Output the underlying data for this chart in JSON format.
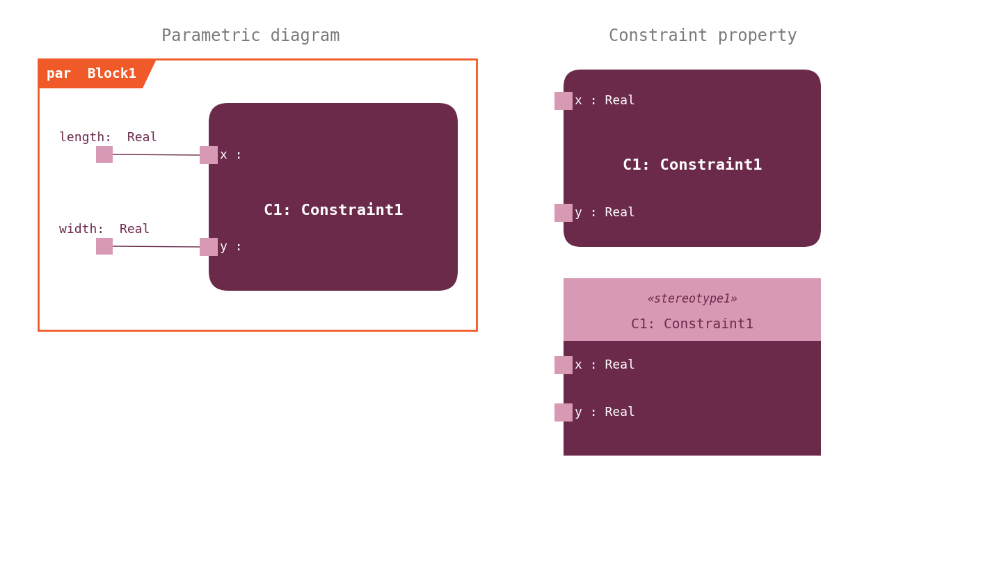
{
  "bg_color": "#ffffff",
  "title_left": "Parametric diagram",
  "title_right": "Constraint property",
  "title_color": "#7a7a7a",
  "title_fontsize": 17,
  "dark_purple": "#6b2a4a",
  "light_pink": "#d899b5",
  "orange": "#f05a28",
  "white": "#ffffff",
  "par_label": "par  Block1",
  "length_label": "length:  Real",
  "width_label": "width:  Real",
  "constraint_main_label": "C1: Constraint1",
  "x_label": "x :",
  "y_label": "y :",
  "right_x_label": "x : Real",
  "right_y_label": "y : Real",
  "stereo_label": "«stereotype1»",
  "stereo_instance": "C1: Constraint1",
  "font_family": "DejaVu Sans Mono"
}
